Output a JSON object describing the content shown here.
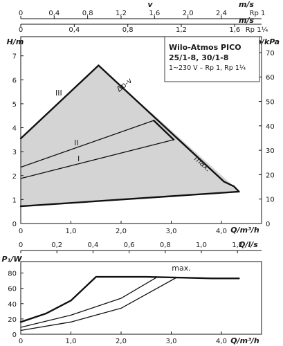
{
  "chart_data": [
    {
      "type": "line",
      "title": "",
      "xlabel": "Q/m³/h",
      "ylabel": "H/m",
      "y2label": "p/kPa",
      "xlim": [
        0,
        4.8
      ],
      "ylim": [
        0,
        7.8
      ],
      "y2lim": [
        0,
        76.5
      ],
      "grid": false,
      "x_ticks": [
        "0",
        "1,0",
        "2,0",
        "3,0",
        "4,0"
      ],
      "y_ticks": [
        "0",
        "1",
        "2",
        "3",
        "4",
        "5",
        "6",
        "7"
      ],
      "y2_ticks": [
        "0",
        "10",
        "20",
        "30",
        "40",
        "50",
        "60",
        "70"
      ],
      "info_box": {
        "line1": "Wilo-Atmos PICO",
        "line2": "25/1-8, 30/1-8",
        "line3": "1~230 V – Rp 1, Rp 1¼"
      },
      "top_axes": [
        {
          "label": "v",
          "unit": "m/s",
          "pipe": "Rp 1",
          "ticks": [
            "0",
            "0,4",
            "0,8",
            "1,2",
            "1,6",
            "2,0",
            "2,4"
          ]
        },
        {
          "unit": "m/s",
          "pipe": "Rp 1¼",
          "ticks": [
            "0",
            "0,4",
            "0,8",
            "1,2",
            "1,6"
          ]
        }
      ],
      "region": {
        "points": [
          [
            0,
            3.55
          ],
          [
            1.55,
            6.6
          ],
          [
            4.25,
            1.55
          ],
          [
            4.35,
            1.33
          ],
          [
            0,
            0.72
          ]
        ]
      },
      "series": [
        {
          "name": "III",
          "values": [
            [
              0,
              3.55
            ],
            [
              1.55,
              6.6
            ]
          ]
        },
        {
          "name": "Δp-v",
          "values": [
            [
              1.55,
              6.6
            ],
            [
              4.05,
              1.75
            ],
            [
              4.25,
              1.55
            ],
            [
              4.35,
              1.33
            ]
          ]
        },
        {
          "name": "II",
          "values": [
            [
              0,
              2.35
            ],
            [
              2.65,
              4.3
            ]
          ]
        },
        {
          "name": "I",
          "values": [
            [
              0,
              1.88
            ],
            [
              3.05,
              3.5
            ]
          ]
        },
        {
          "name": "max.",
          "values": [
            [
              2.65,
              4.3
            ],
            [
              3.05,
              3.5
            ]
          ]
        },
        {
          "name": "",
          "values": [
            [
              0,
              0.72
            ],
            [
              4.35,
              1.33
            ]
          ]
        }
      ]
    },
    {
      "type": "line",
      "title": "",
      "xlabel": "Q/m³/h",
      "ylabel": "P₁/W",
      "xlim": [
        0,
        4.8
      ],
      "ylim": [
        0,
        95
      ],
      "grid": false,
      "x_ticks": [
        "0",
        "1,0",
        "2,0",
        "3,0",
        "4,0"
      ],
      "y_ticks": [
        "0",
        "20",
        "40",
        "60",
        "80"
      ],
      "top_axis": {
        "unit": "Q/l/s",
        "ticks": [
          "0",
          "0,2",
          "0,4",
          "0,6",
          "0,8",
          "1,0",
          "1,2"
        ]
      },
      "series": [
        {
          "name": "max.",
          "values": [
            [
              0,
              16
            ],
            [
              0.5,
              27
            ],
            [
              1.0,
              44
            ],
            [
              1.5,
              75
            ],
            [
              2.5,
              75
            ],
            [
              3.2,
              74
            ],
            [
              3.8,
              73
            ],
            [
              4.35,
              73
            ]
          ]
        },
        {
          "name": "",
          "values": [
            [
              0,
              9
            ],
            [
              1.0,
              25
            ],
            [
              2.0,
              47
            ],
            [
              2.7,
              74
            ]
          ]
        },
        {
          "name": "",
          "values": [
            [
              0,
              5
            ],
            [
              1.0,
              16
            ],
            [
              2.0,
              34
            ],
            [
              3.1,
              74
            ]
          ]
        }
      ]
    }
  ]
}
